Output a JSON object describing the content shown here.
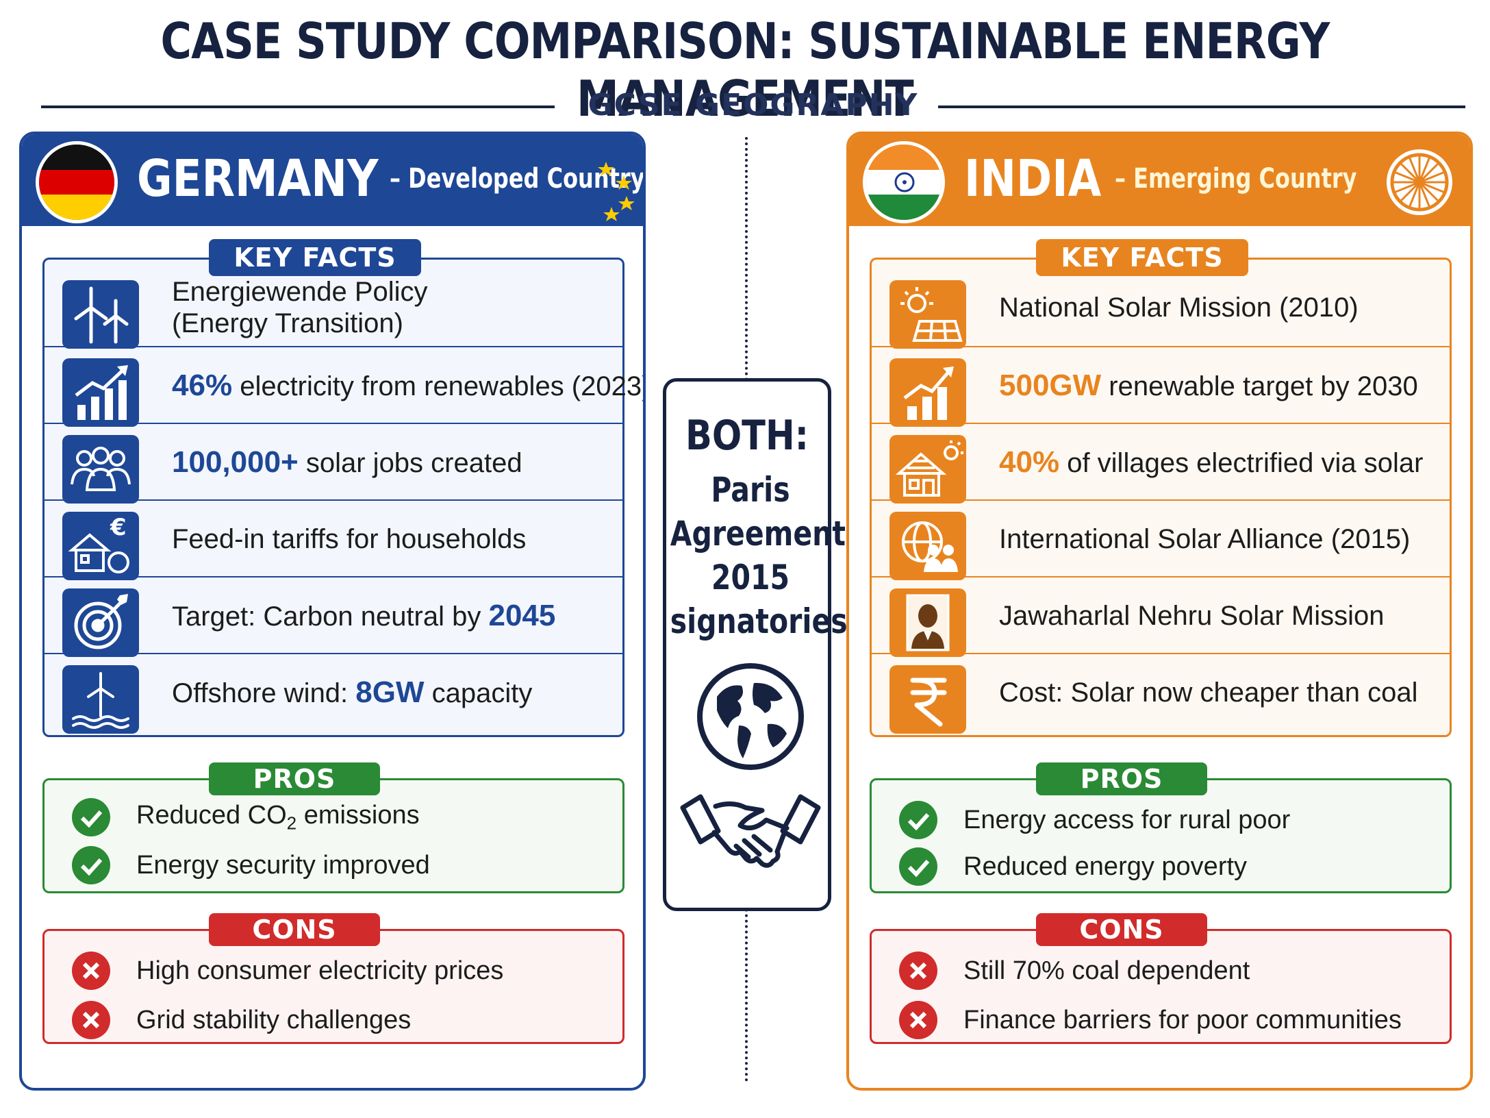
{
  "title": "CASE STUDY COMPARISON: SUSTAINABLE ENERGY MANAGEMENT",
  "subtitle": "GCSE GEOGRAPHY",
  "germany": {
    "name": "GERMANY",
    "descriptor": "– Developed Country",
    "key_facts_label": "KEY FACTS",
    "facts": [
      {
        "icon": "wind-turbines-icon",
        "lead": "",
        "text": "Energiewende Policy",
        "text2": "(Energy Transition)",
        "tail": ""
      },
      {
        "icon": "growth-chart-icon",
        "lead": "46%",
        "text": " electricity from renewables (2023)",
        "text2": "",
        "tail": ""
      },
      {
        "icon": "people-group-icon",
        "lead": "100,000+",
        "text": " solar jobs created",
        "text2": "",
        "tail": ""
      },
      {
        "icon": "house-euro-icon",
        "lead": "",
        "text": "Feed-in tariffs for households",
        "text2": "",
        "tail": ""
      },
      {
        "icon": "target-icon",
        "lead": "",
        "text": "Target: Carbon neutral by ",
        "text2": "",
        "tail": "2045"
      },
      {
        "icon": "offshore-wind-icon",
        "lead": "",
        "text": "Offshore wind: ",
        "text2": "",
        "tail": "8GW",
        "after": " capacity"
      }
    ],
    "pros_label": "PROS",
    "pros": [
      "Reduced CO",
      "Energy security improved"
    ],
    "pros_sub": "2",
    "pros_after": " emissions",
    "cons_label": "CONS",
    "cons": [
      "High consumer electricity prices",
      "Grid stability challenges"
    ],
    "colors": {
      "primary": "#1e4796"
    }
  },
  "india": {
    "name": "INDIA",
    "descriptor": "– Emerging Country",
    "key_facts_label": "KEY FACTS",
    "facts": [
      {
        "icon": "sun-solar-panel-icon",
        "lead": "",
        "text": "National Solar Mission (2010)"
      },
      {
        "icon": "growth-chart-icon",
        "lead": "500GW",
        "text": " renewable target by 2030"
      },
      {
        "icon": "solar-house-icon",
        "lead": "40%",
        "text": " of villages electrified via solar"
      },
      {
        "icon": "globe-people-icon",
        "lead": "",
        "text": "International Solar Alliance (2015)"
      },
      {
        "icon": "portrait-icon",
        "lead": "",
        "text": "Jawaharlal Nehru Solar Mission"
      },
      {
        "icon": "rupee-icon",
        "lead": "",
        "text": "Cost: Solar now cheaper than coal"
      }
    ],
    "pros_label": "PROS",
    "pros": [
      "Energy access for rural poor",
      "Reduced energy poverty"
    ],
    "cons_label": "CONS",
    "cons": [
      "Still 70% coal dependent",
      "Finance barriers for poor communities"
    ],
    "colors": {
      "primary": "#e8841f"
    }
  },
  "both": {
    "title": "BOTH:",
    "lines": [
      "Paris",
      "Agreement",
      "2015",
      "signatories"
    ]
  }
}
